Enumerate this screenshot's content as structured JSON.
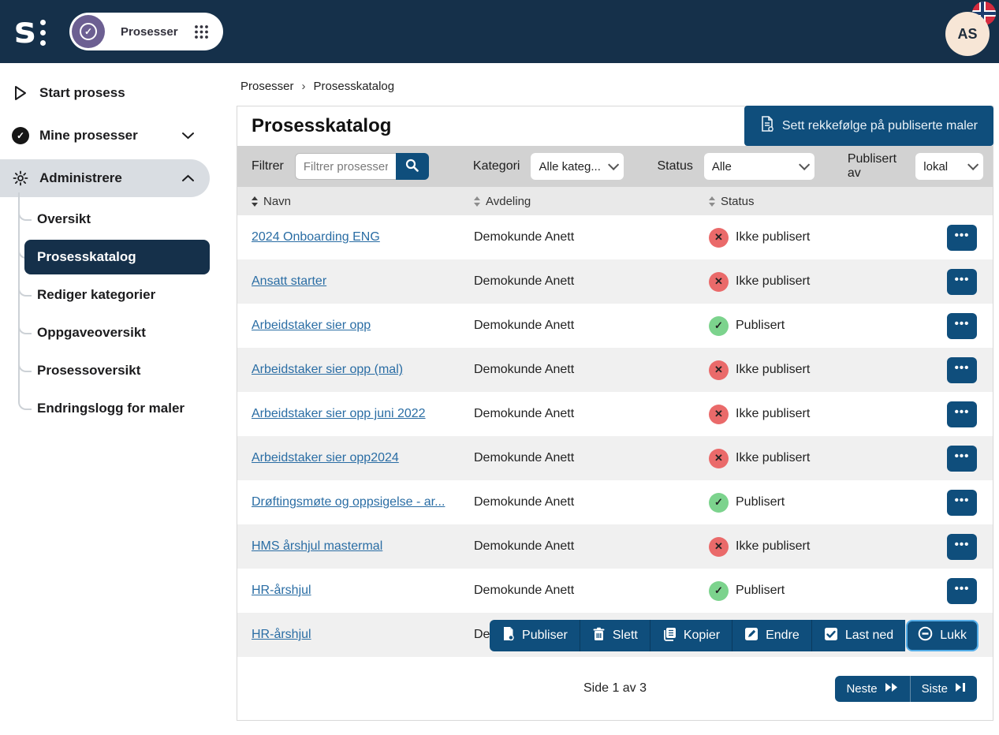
{
  "topbar": {
    "app_pill_label": "Prosesser",
    "user_initials": "AS"
  },
  "sidebar": {
    "items": [
      {
        "label": "Start prosess",
        "icon": "play",
        "chevron": null,
        "active": false
      },
      {
        "label": "Mine prosesser",
        "icon": "check-circle",
        "chevron": "down",
        "active": false
      },
      {
        "label": "Administrere",
        "icon": "gear",
        "chevron": "up",
        "active": true
      }
    ],
    "admin_submenu": [
      {
        "label": "Oversikt",
        "selected": false
      },
      {
        "label": "Prosesskatalog",
        "selected": true
      },
      {
        "label": "Rediger kategorier",
        "selected": false
      },
      {
        "label": "Oppgaveoversikt",
        "selected": false
      },
      {
        "label": "Prosessoversikt",
        "selected": false
      },
      {
        "label": "Endringslogg for maler",
        "selected": false
      }
    ]
  },
  "breadcrumb": {
    "parent": "Prosesser",
    "separator": "›",
    "current": "Prosesskatalog"
  },
  "page": {
    "title": "Prosesskatalog",
    "order_button_label": "Sett rekkefølge på publiserte maler"
  },
  "filters": {
    "filter_label": "Filtrer",
    "filter_placeholder": "Filtrer prosesser",
    "category_label": "Kategori",
    "category_value": "Alle kateg...",
    "status_label": "Status",
    "status_value": "Alle",
    "published_by_label": "Publisert av",
    "published_by_value": "lokal"
  },
  "table": {
    "columns": [
      {
        "label": "Navn"
      },
      {
        "label": "Avdeling"
      },
      {
        "label": "Status"
      }
    ],
    "rows": [
      {
        "name": "2024 Onboarding ENG",
        "department": "Demokunde Anett",
        "status": "Ikke publisert",
        "published": false
      },
      {
        "name": "Ansatt starter",
        "department": "Demokunde Anett",
        "status": "Ikke publisert",
        "published": false
      },
      {
        "name": "Arbeidstaker sier opp",
        "department": "Demokunde Anett",
        "status": "Publisert",
        "published": true
      },
      {
        "name": "Arbeidstaker sier opp (mal)",
        "department": "Demokunde Anett",
        "status": "Ikke publisert",
        "published": false
      },
      {
        "name": "Arbeidstaker sier opp juni 2022",
        "department": "Demokunde Anett",
        "status": "Ikke publisert",
        "published": false
      },
      {
        "name": "Arbeidstaker sier opp2024",
        "department": "Demokunde Anett",
        "status": "Ikke publisert",
        "published": false
      },
      {
        "name": "Drøftingsmøte og oppsigelse - ar...",
        "department": "Demokunde Anett",
        "status": "Publisert",
        "published": true
      },
      {
        "name": "HMS årshjul mastermal",
        "department": "Demokunde Anett",
        "status": "Ikke publisert",
        "published": false
      },
      {
        "name": "HR-årshjul",
        "department": "Demokunde Anett",
        "status": "Publisert",
        "published": true
      },
      {
        "name": "HR-årshjul",
        "department": "Demokunde Anett",
        "status": null,
        "published": null
      }
    ]
  },
  "row_actions": [
    {
      "label": "Publiser",
      "icon": "publish"
    },
    {
      "label": "Slett",
      "icon": "trash"
    },
    {
      "label": "Kopier",
      "icon": "copy"
    },
    {
      "label": "Endre",
      "icon": "edit"
    },
    {
      "label": "Last ned",
      "icon": "download"
    },
    {
      "label": "Lukk",
      "icon": "close-circle"
    }
  ],
  "pagination": {
    "page_info": "Side 1 av 3",
    "next_label": "Neste",
    "last_label": "Siste"
  },
  "colors": {
    "topbar_navy": "#15304a",
    "button_blue": "#0f4e7c",
    "link_blue": "#2a6da4",
    "status_green": "#7cd38d",
    "status_red": "#ea6a6a",
    "avatar_bg": "#f7e6d6",
    "pill_purple": "#6c5f92",
    "filter_bar_gray": "#d2d2d2"
  }
}
